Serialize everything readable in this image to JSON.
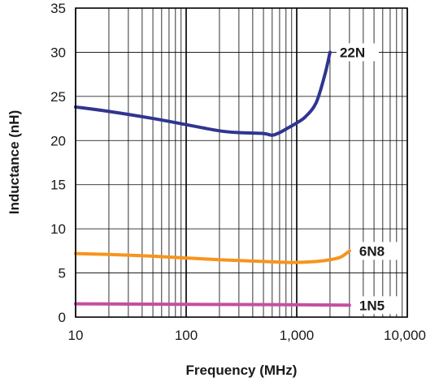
{
  "chart_data": {
    "type": "line",
    "title": "",
    "xlabel": "Frequency (MHz)",
    "ylabel": "Inductance (nH)",
    "x_scale": "log",
    "xlim": [
      10,
      10000
    ],
    "ylim": [
      0,
      35
    ],
    "x_ticks": [
      10,
      100,
      1000,
      10000
    ],
    "x_tick_labels": [
      "10",
      "100",
      "1,000",
      "10,000"
    ],
    "y_ticks": [
      0,
      5,
      10,
      15,
      20,
      25,
      30,
      35
    ],
    "y_tick_labels": [
      "0",
      "5",
      "10",
      "15",
      "20",
      "25",
      "30",
      "35"
    ],
    "grid": true,
    "legend": "none",
    "series": [
      {
        "name": "22N",
        "color": "#2f3590",
        "x": [
          10,
          20,
          50,
          100,
          200,
          300,
          500,
          600,
          700,
          800,
          1000,
          1200,
          1500,
          1800,
          2000
        ],
        "values": [
          23.8,
          23.3,
          22.5,
          21.8,
          21.1,
          20.9,
          20.8,
          20.6,
          20.9,
          21.3,
          22.0,
          22.7,
          24.3,
          27.5,
          30.0
        ]
      },
      {
        "name": "6N8",
        "color": "#f7941d",
        "x": [
          10,
          20,
          50,
          100,
          200,
          500,
          800,
          1000,
          1500,
          2000,
          2500,
          3000
        ],
        "values": [
          7.2,
          7.1,
          6.9,
          6.7,
          6.5,
          6.3,
          6.2,
          6.2,
          6.3,
          6.5,
          6.8,
          7.5
        ]
      },
      {
        "name": "1N5",
        "color": "#c44fa0",
        "x": [
          10,
          100,
          1000,
          3000
        ],
        "values": [
          1.5,
          1.45,
          1.4,
          1.35
        ]
      }
    ]
  }
}
